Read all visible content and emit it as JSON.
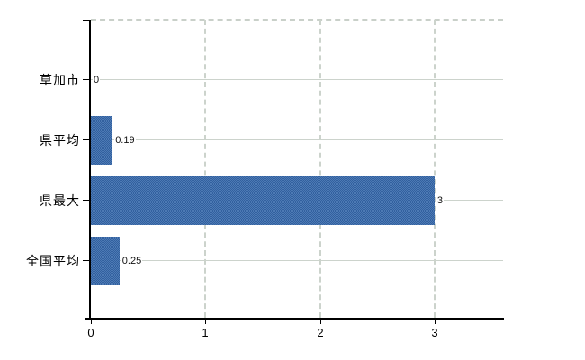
{
  "chart_data": {
    "type": "bar",
    "orientation": "horizontal",
    "title": "",
    "categories": [
      "草加市",
      "県平均",
      "県最大",
      "全国平均"
    ],
    "values": [
      0,
      0.19,
      3,
      0.25
    ],
    "value_labels": [
      "0",
      "0.19",
      "3",
      "0.25"
    ],
    "x_ticks": [
      "0",
      "1",
      "2",
      "3"
    ],
    "x_tick_values": [
      0,
      1,
      2,
      3
    ],
    "xlim": [
      0,
      3.6
    ],
    "grid": "horizontal solid, vertical dashed, top dashed",
    "legend": "none",
    "bar_color": "#3d6eac",
    "bar_color_light": "#4d7ab4",
    "bar_color_dark": "#32609f",
    "axis_color": "#000000",
    "grid_color": "#ccd3cc",
    "background_color": "#ffffff"
  }
}
